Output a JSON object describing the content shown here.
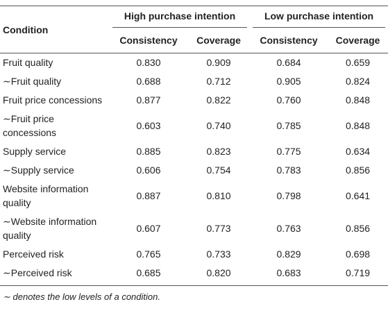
{
  "table": {
    "header": {
      "condition": "Condition",
      "groups": [
        "High purchase intention",
        "Low purchase intention"
      ],
      "subheaders": [
        "Consistency",
        "Coverage",
        "Consistency",
        "Coverage"
      ]
    },
    "rows": [
      [
        "Fruit quality",
        "0.830",
        "0.909",
        "0.684",
        "0.659"
      ],
      [
        "∼Fruit quality",
        "0.688",
        "0.712",
        "0.905",
        "0.824"
      ],
      [
        "Fruit price concessions",
        "0.877",
        "0.822",
        "0.760",
        "0.848"
      ],
      [
        "∼Fruit price concessions",
        "0.603",
        "0.740",
        "0.785",
        "0.848"
      ],
      [
        "Supply service",
        "0.885",
        "0.823",
        "0.775",
        "0.634"
      ],
      [
        "∼Supply service",
        "0.606",
        "0.754",
        "0.783",
        "0.856"
      ],
      [
        "Website information quality",
        "0.887",
        "0.810",
        "0.798",
        "0.641"
      ],
      [
        "∼Website information quality",
        "0.607",
        "0.773",
        "0.763",
        "0.856"
      ],
      [
        "Perceived risk",
        "0.765",
        "0.733",
        "0.829",
        "0.698"
      ],
      [
        "∼Perceived risk",
        "0.685",
        "0.820",
        "0.683",
        "0.719"
      ]
    ]
  },
  "footnote": "∼ denotes the low levels of a condition."
}
